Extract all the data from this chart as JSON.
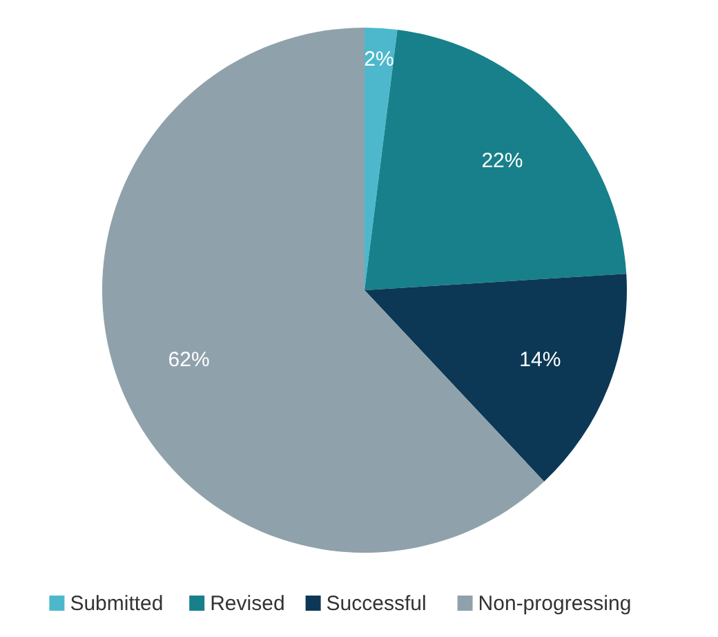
{
  "chart_data": {
    "type": "pie",
    "categories": [
      "Submitted",
      "Revised",
      "Successful",
      "Non-progressing"
    ],
    "values": [
      2,
      22,
      14,
      62
    ],
    "colors": [
      "#4db8cc",
      "#17808a",
      "#0c3855",
      "#8fa2ab"
    ],
    "value_labels": [
      "2%",
      "22%",
      "14%",
      "62%"
    ],
    "legend": "bottom"
  }
}
